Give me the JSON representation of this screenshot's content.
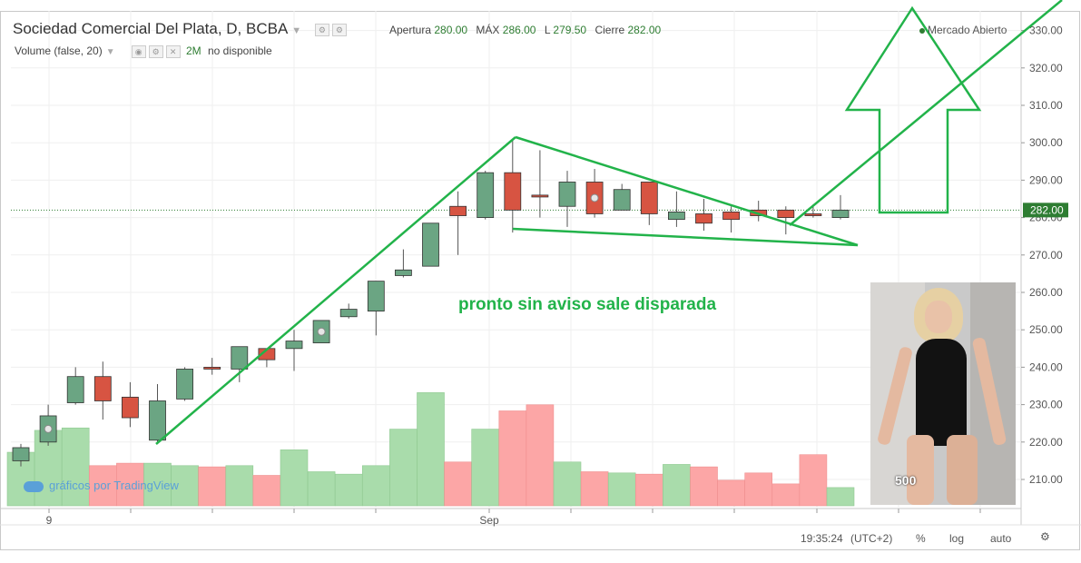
{
  "header": {
    "title": "Sociedad Comercial Del Plata, D, BCBA",
    "ohlc": {
      "open_label": "Apertura",
      "open": "280.00",
      "high_label": "MÁX",
      "high": "286.00",
      "low_label": "L",
      "low": "279.50",
      "close_label": "Cierre",
      "close": "282.00"
    },
    "volume_label": "Volume (false, 20)",
    "volume_value": "2M",
    "volume_status": "no disponible",
    "market_status": "Mercado Abierto"
  },
  "watermark": "gráficos por TradingView",
  "annotation": "pronto sin aviso sale disparada",
  "photo_overlay_text": "500",
  "status_bar": {
    "time": "19:35:24",
    "timezone": "(UTC+2)",
    "percent": "%",
    "log": "log",
    "auto": "auto"
  },
  "colors": {
    "up": "#6ba583",
    "down": "#d75442",
    "vol_up": "#a9dcab",
    "vol_down": "#fca6a6",
    "trendlines": "#22b34a",
    "last_price": "#2e7d32"
  },
  "icons": [
    "chevron-down-icon",
    "settings-icon",
    "close-icon",
    "tradingview-cloud-icon",
    "gear-icon",
    "market-status-dot-icon"
  ],
  "chart_data": {
    "type": "candlestick",
    "title": "Sociedad Comercial Del Plata, D, BCBA",
    "ylim": [
      203,
      333
    ],
    "y_ticks": [
      "210.00",
      "220.00",
      "230.00",
      "240.00",
      "250.00",
      "260.00",
      "270.00",
      "280.00",
      "290.00",
      "300.00",
      "310.00",
      "320.00",
      "330.00"
    ],
    "x_tick_labels": [
      "9",
      "Sep"
    ],
    "last_price": "282.00",
    "candles": [
      {
        "o": 215.0,
        "h": 219.5,
        "l": 213.5,
        "c": 218.5
      },
      {
        "o": 220.0,
        "h": 230.0,
        "l": 219.0,
        "c": 227.0
      },
      {
        "o": 230.5,
        "h": 240.0,
        "l": 230.0,
        "c": 237.5
      },
      {
        "o": 237.5,
        "h": 241.5,
        "l": 226.0,
        "c": 231.0
      },
      {
        "o": 232.0,
        "h": 236.0,
        "l": 224.0,
        "c": 226.5
      },
      {
        "o": 220.5,
        "h": 235.5,
        "l": 220.0,
        "c": 231.0
      },
      {
        "o": 231.5,
        "h": 240.0,
        "l": 231.0,
        "c": 239.5
      },
      {
        "o": 240.0,
        "h": 242.5,
        "l": 238.0,
        "c": 239.5
      },
      {
        "o": 239.5,
        "h": 245.5,
        "l": 236.0,
        "c": 245.5
      },
      {
        "o": 245.0,
        "h": 245.0,
        "l": 240.0,
        "c": 242.0
      },
      {
        "o": 245.0,
        "h": 250.0,
        "l": 239.0,
        "c": 247.0
      },
      {
        "o": 246.5,
        "h": 252.5,
        "l": 246.5,
        "c": 252.5
      },
      {
        "o": 253.5,
        "h": 257.0,
        "l": 253.0,
        "c": 255.5
      },
      {
        "o": 255.0,
        "h": 263.0,
        "l": 248.5,
        "c": 263.0
      },
      {
        "o": 264.5,
        "h": 271.5,
        "l": 264.0,
        "c": 266.0
      },
      {
        "o": 267.0,
        "h": 278.5,
        "l": 267.0,
        "c": 278.5
      },
      {
        "o": 283.0,
        "h": 287.0,
        "l": 270.0,
        "c": 280.5
      },
      {
        "o": 280.0,
        "h": 292.5,
        "l": 279.5,
        "c": 292.0
      },
      {
        "o": 292.0,
        "h": 301.0,
        "l": 276.0,
        "c": 282.0
      },
      {
        "o": 286.0,
        "h": 298.0,
        "l": 280.0,
        "c": 285.5
      },
      {
        "o": 283.0,
        "h": 292.5,
        "l": 277.5,
        "c": 289.5
      },
      {
        "o": 289.5,
        "h": 293.0,
        "l": 280.0,
        "c": 281.0
      },
      {
        "o": 282.0,
        "h": 289.0,
        "l": 282.0,
        "c": 287.5
      },
      {
        "o": 289.5,
        "h": 289.5,
        "l": 278.0,
        "c": 281.0
      },
      {
        "o": 279.5,
        "h": 287.0,
        "l": 277.5,
        "c": 281.5
      },
      {
        "o": 281.0,
        "h": 285.0,
        "l": 276.5,
        "c": 278.5
      },
      {
        "o": 281.5,
        "h": 283.0,
        "l": 276.0,
        "c": 279.5
      },
      {
        "o": 282.0,
        "h": 284.5,
        "l": 279.0,
        "c": 280.5
      },
      {
        "o": 282.0,
        "h": 283.0,
        "l": 275.5,
        "c": 280.0
      },
      {
        "o": 281.0,
        "h": 283.5,
        "l": 280.0,
        "c": 280.5
      },
      {
        "o": 280.0,
        "h": 286.0,
        "l": 279.5,
        "c": 282.0
      }
    ],
    "volume": [
      {
        "v": 0.44,
        "up": true
      },
      {
        "v": 0.62,
        "up": true
      },
      {
        "v": 0.64,
        "up": true
      },
      {
        "v": 0.33,
        "up": false
      },
      {
        "v": 0.35,
        "up": false
      },
      {
        "v": 0.35,
        "up": true
      },
      {
        "v": 0.33,
        "up": true
      },
      {
        "v": 0.32,
        "up": false
      },
      {
        "v": 0.33,
        "up": true
      },
      {
        "v": 0.25,
        "up": false
      },
      {
        "v": 0.46,
        "up": true
      },
      {
        "v": 0.28,
        "up": true
      },
      {
        "v": 0.26,
        "up": true
      },
      {
        "v": 0.33,
        "up": true
      },
      {
        "v": 0.63,
        "up": true
      },
      {
        "v": 0.93,
        "up": true
      },
      {
        "v": 0.36,
        "up": false
      },
      {
        "v": 0.63,
        "up": true
      },
      {
        "v": 0.78,
        "up": false
      },
      {
        "v": 0.83,
        "up": false
      },
      {
        "v": 0.36,
        "up": true
      },
      {
        "v": 0.28,
        "up": false
      },
      {
        "v": 0.27,
        "up": true
      },
      {
        "v": 0.26,
        "up": false
      },
      {
        "v": 0.34,
        "up": true
      },
      {
        "v": 0.32,
        "up": false
      },
      {
        "v": 0.21,
        "up": false
      },
      {
        "v": 0.27,
        "up": false
      },
      {
        "v": 0.18,
        "up": false
      },
      {
        "v": 0.42,
        "up": false
      },
      {
        "v": 0.15,
        "up": true
      }
    ],
    "volume_max": 1.0
  }
}
